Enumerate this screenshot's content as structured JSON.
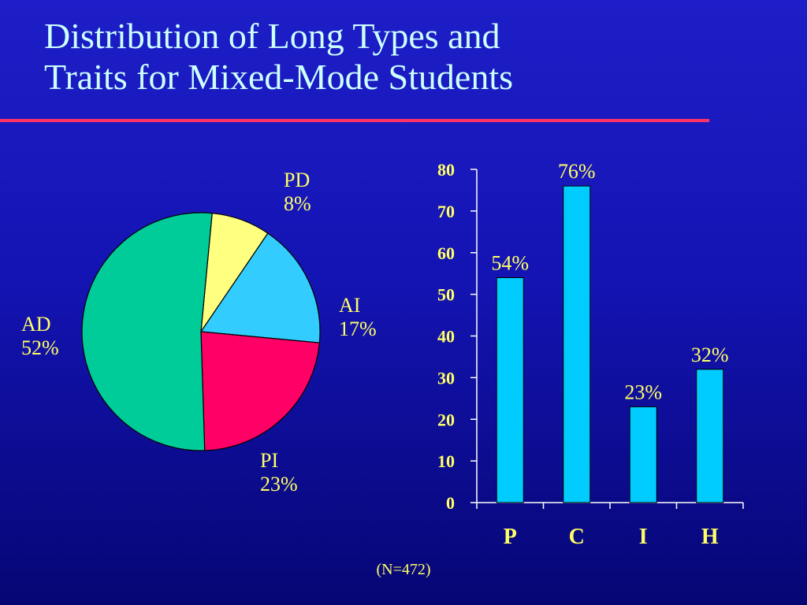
{
  "slide": {
    "title_line1": "Distribution of Long Types and",
    "title_line2": "Traits for Mixed-Mode Students",
    "note": "(N=472)"
  },
  "colors": {
    "title": "#ccffff",
    "accent_rule": "#ff3366",
    "labels": "#ffff66",
    "bars": "#00ccff",
    "axis": "#ffffff"
  },
  "chart_data": [
    {
      "type": "pie",
      "slices": [
        {
          "label": "PD",
          "value": 8,
          "value_label": "8%",
          "color": "#ffff80"
        },
        {
          "label": "AI",
          "value": 17,
          "value_label": "17%",
          "color": "#33ccff"
        },
        {
          "label": "PI",
          "value": 23,
          "value_label": "23%",
          "color": "#ff0066"
        },
        {
          "label": "AD",
          "value": 52,
          "value_label": "52%",
          "color": "#00cc99"
        }
      ],
      "start": "top, clockwise"
    },
    {
      "type": "bar",
      "categories": [
        "P",
        "C",
        "I",
        "H"
      ],
      "values": [
        54,
        76,
        23,
        32
      ],
      "data_labels": [
        "54%",
        "76%",
        "23%",
        "32%"
      ],
      "ylim": [
        0,
        80
      ],
      "yticks": [
        "0",
        "10",
        "20",
        "30",
        "40",
        "50",
        "60",
        "70",
        "80"
      ],
      "grid": false
    }
  ]
}
